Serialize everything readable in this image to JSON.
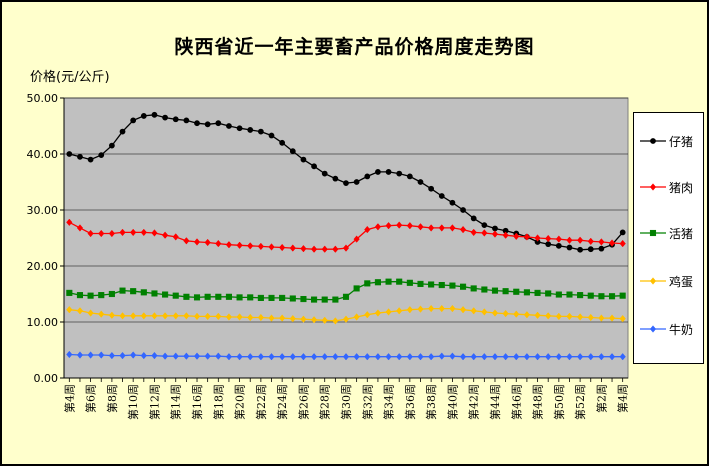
{
  "chart_data": {
    "type": "line",
    "title": "陕西省近一年主要畜产品价格周度走势图",
    "ylabel": "价格(元/公斤)",
    "xlabel": "",
    "ylim": [
      0,
      50
    ],
    "yticks": [
      "0.00",
      "10.00",
      "20.00",
      "30.00",
      "40.00",
      "50.00"
    ],
    "grid": true,
    "legend_position": "right",
    "x": [
      "第4周",
      "第5周",
      "第6周",
      "第7周",
      "第8周",
      "第9周",
      "第10周",
      "第11周",
      "第12周",
      "第13周",
      "第14周",
      "第15周",
      "第16周",
      "第17周",
      "第18周",
      "第19周",
      "第20周",
      "第21周",
      "第22周",
      "第23周",
      "第24周",
      "第25周",
      "第26周",
      "第27周",
      "第28周",
      "第29周",
      "第30周",
      "第31周",
      "第32周",
      "第33周",
      "第34周",
      "第35周",
      "第36周",
      "第37周",
      "第38周",
      "第39周",
      "第40周",
      "第41周",
      "第42周",
      "第43周",
      "第44周",
      "第45周",
      "第46周",
      "第47周",
      "第48周",
      "第49周",
      "第50周",
      "第51周",
      "第52周",
      "第1周",
      "第2周",
      "第3周",
      "第4周"
    ],
    "x_tick_labels": [
      "第4周",
      "第6周",
      "第8周",
      "第10周",
      "第12周",
      "第14周",
      "第16周",
      "第18周",
      "第20周",
      "第22周",
      "第24周",
      "第26周",
      "第28周",
      "第30周",
      "第32周",
      "第34周",
      "第36周",
      "第38周",
      "第40周",
      "第42周",
      "第44周",
      "第46周",
      "第48周",
      "第50周",
      "第52周",
      "第2周",
      "第4周"
    ],
    "series": [
      {
        "name": "仔猪",
        "color": "#000000",
        "marker": "circle",
        "values": [
          40.0,
          39.5,
          39.0,
          39.8,
          41.5,
          44.0,
          46.0,
          46.8,
          47.0,
          46.5,
          46.2,
          46.0,
          45.5,
          45.3,
          45.5,
          45.0,
          44.6,
          44.3,
          44.0,
          43.3,
          42.0,
          40.5,
          39.0,
          37.8,
          36.5,
          35.6,
          34.8,
          35.0,
          36.0,
          36.8,
          36.8,
          36.5,
          36.0,
          35.0,
          33.8,
          32.5,
          31.3,
          30.0,
          28.5,
          27.3,
          26.7,
          26.3,
          25.8,
          25.2,
          24.3,
          23.9,
          23.6,
          23.3,
          22.9,
          23.0,
          23.1,
          23.8,
          26.0
        ]
      },
      {
        "name": "猪肉",
        "color": "#ff0000",
        "marker": "diamond",
        "values": [
          27.8,
          26.8,
          25.8,
          25.8,
          25.8,
          26.0,
          26.0,
          26.0,
          25.9,
          25.5,
          25.2,
          24.5,
          24.3,
          24.2,
          24.0,
          23.8,
          23.7,
          23.6,
          23.5,
          23.4,
          23.3,
          23.2,
          23.1,
          23.0,
          23.0,
          23.0,
          23.2,
          24.8,
          26.5,
          27.0,
          27.2,
          27.3,
          27.2,
          27.0,
          26.8,
          26.8,
          26.8,
          26.5,
          26.0,
          25.9,
          25.7,
          25.5,
          25.3,
          25.2,
          25.0,
          24.9,
          24.8,
          24.6,
          24.6,
          24.4,
          24.3,
          24.1,
          24.0
        ]
      },
      {
        "name": "活猪",
        "color": "#008000",
        "marker": "square",
        "values": [
          15.2,
          14.8,
          14.7,
          14.8,
          15.0,
          15.6,
          15.5,
          15.3,
          15.1,
          14.9,
          14.7,
          14.5,
          14.4,
          14.5,
          14.5,
          14.5,
          14.4,
          14.4,
          14.3,
          14.3,
          14.3,
          14.2,
          14.1,
          14.0,
          14.0,
          14.0,
          14.5,
          16.0,
          16.9,
          17.1,
          17.2,
          17.2,
          17.0,
          16.8,
          16.7,
          16.6,
          16.5,
          16.3,
          16.0,
          15.8,
          15.6,
          15.5,
          15.4,
          15.3,
          15.2,
          15.1,
          14.9,
          14.9,
          14.8,
          14.7,
          14.6,
          14.6,
          14.7
        ]
      },
      {
        "name": "鸡蛋",
        "color": "#ffc000",
        "marker": "diamond",
        "values": [
          12.2,
          12.0,
          11.6,
          11.4,
          11.2,
          11.1,
          11.1,
          11.1,
          11.1,
          11.1,
          11.1,
          11.1,
          11.0,
          11.0,
          11.0,
          10.9,
          10.9,
          10.8,
          10.8,
          10.7,
          10.7,
          10.6,
          10.5,
          10.4,
          10.3,
          10.2,
          10.5,
          10.9,
          11.3,
          11.6,
          11.8,
          12.0,
          12.2,
          12.3,
          12.4,
          12.4,
          12.4,
          12.2,
          12.0,
          11.8,
          11.6,
          11.5,
          11.4,
          11.3,
          11.2,
          11.1,
          11.0,
          11.0,
          10.9,
          10.8,
          10.7,
          10.7,
          10.6
        ]
      },
      {
        "name": "牛奶",
        "color": "#3366ff",
        "marker": "diamond",
        "values": [
          4.2,
          4.1,
          4.1,
          4.1,
          4.0,
          4.0,
          4.1,
          4.0,
          4.0,
          3.9,
          3.9,
          3.9,
          3.9,
          3.9,
          3.9,
          3.8,
          3.8,
          3.8,
          3.8,
          3.8,
          3.8,
          3.8,
          3.8,
          3.8,
          3.8,
          3.8,
          3.8,
          3.8,
          3.8,
          3.8,
          3.8,
          3.8,
          3.8,
          3.8,
          3.8,
          3.9,
          3.9,
          3.8,
          3.8,
          3.8,
          3.8,
          3.8,
          3.8,
          3.8,
          3.8,
          3.8,
          3.8,
          3.8,
          3.8,
          3.8,
          3.8,
          3.8,
          3.8
        ]
      }
    ]
  }
}
